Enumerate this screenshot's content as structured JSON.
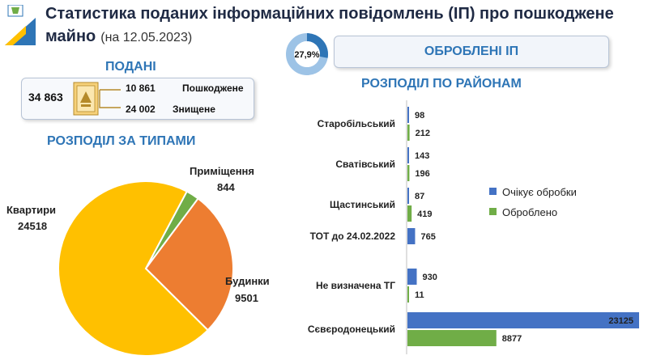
{
  "header": {
    "title_line1": "Статистика поданих інформаційних повідомлень (ІП) про пошкоджене",
    "title_line2": "майно",
    "date": "(на 12.05.2023)"
  },
  "processed": {
    "percent_label": "27,9%",
    "percent_value": 27.9,
    "label": "ОБРОБЛЕНІ ІП"
  },
  "submitted": {
    "title": "ПОДАНІ",
    "total": "34 863",
    "items": [
      {
        "value": "10 861",
        "label": "Пошкоджене"
      },
      {
        "value": "24 002",
        "label": "Знищене"
      }
    ]
  },
  "colors": {
    "accent": "#2e75b6",
    "series_waiting": "#4472c4",
    "series_processed": "#70ad47",
    "pie_apartments": "#ffc000",
    "pie_houses": "#ed7d31",
    "pie_premises": "#70ad47",
    "donut_fill": "#2e75b6",
    "donut_rest": "#9dc3e6"
  },
  "chart_data": [
    {
      "type": "pie",
      "title": "РОЗПОДІЛ ЗА ТИПАМИ",
      "slices": [
        {
          "name": "Квартири",
          "value": 24518
        },
        {
          "name": "Будинки",
          "value": 9501
        },
        {
          "name": "Приміщення",
          "value": 844
        }
      ]
    },
    {
      "type": "bar",
      "orientation": "horizontal",
      "title": "РОЗПОДІЛ ПО РАЙОНАМ",
      "categories": [
        "Старобільський",
        "Сватівський",
        "Щастинський",
        "ТОТ до 24.02.2022",
        "Не визначена ТГ",
        "Сєвєродонецький"
      ],
      "series": [
        {
          "name": "Очікує обробки",
          "values": [
            98,
            143,
            87,
            765,
            930,
            23125
          ]
        },
        {
          "name": "Оброблено",
          "values": [
            212,
            196,
            419,
            null,
            11,
            8877
          ]
        }
      ],
      "legend": "right",
      "grid": false
    }
  ]
}
